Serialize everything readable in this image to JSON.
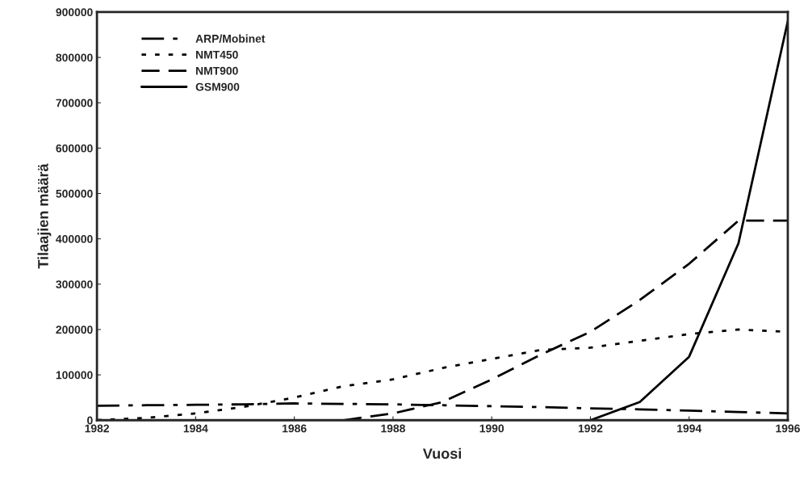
{
  "chart_data": {
    "type": "line",
    "xlabel": "Vuosi",
    "ylabel": "Tilaajien määrä",
    "xlim": [
      1982,
      1996
    ],
    "xticks": [
      1982,
      1984,
      1986,
      1988,
      1990,
      1992,
      1994,
      1996
    ],
    "ylim": [
      0,
      900000
    ],
    "yticks": [
      0,
      100000,
      200000,
      300000,
      400000,
      500000,
      600000,
      700000,
      800000,
      900000
    ],
    "grid": false,
    "legend": "top left",
    "series": [
      {
        "name": "ARP/Mobinet",
        "color": "#000000",
        "line_style": "dashdot",
        "x": [
          1982,
          1983,
          1984,
          1985,
          1986,
          1987,
          1988,
          1989,
          1990,
          1991,
          1992,
          1993,
          1994,
          1995,
          1996
        ],
        "values": [
          32000,
          33000,
          34000,
          35000,
          37000,
          36000,
          35000,
          33000,
          31000,
          29000,
          26000,
          24000,
          21000,
          18000,
          15000
        ]
      },
      {
        "name": "NMT450",
        "color": "#000000",
        "line_style": "dotted",
        "x": [
          1982,
          1983,
          1984,
          1985,
          1986,
          1987,
          1988,
          1989,
          1990,
          1991,
          1992,
          1993,
          1994,
          1995,
          1996
        ],
        "values": [
          0,
          5000,
          15000,
          30000,
          50000,
          75000,
          90000,
          115000,
          135000,
          155000,
          160000,
          175000,
          190000,
          200000,
          195000
        ]
      },
      {
        "name": "NMT900",
        "color": "#000000",
        "line_style": "dashed",
        "x": [
          1987,
          1988,
          1989,
          1990,
          1991,
          1992,
          1993,
          1994,
          1995,
          1996
        ],
        "values": [
          0,
          15000,
          40000,
          90000,
          145000,
          195000,
          265000,
          345000,
          440000,
          440000
        ]
      },
      {
        "name": "GSM900",
        "color": "#000000",
        "line_style": "solid",
        "x": [
          1992,
          1993,
          1994,
          1995,
          1996
        ],
        "values": [
          0,
          40000,
          140000,
          390000,
          880000
        ]
      }
    ]
  }
}
